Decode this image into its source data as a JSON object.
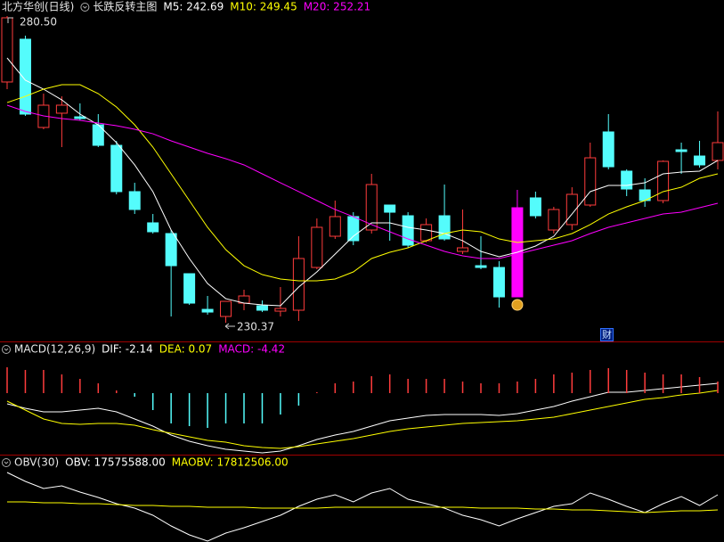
{
  "chart_data": [
    {
      "type": "candlestick",
      "title": "北方华创(日线)",
      "subtitle": "长跌反转主图",
      "ylim": [
        227.32,
        283.12
      ],
      "up_color": "#ff3c3c",
      "down_color": "#54fcfc",
      "signal_color": "#ff00ff",
      "open": [
        269.72,
        276.71,
        262.29,
        264.62,
        264.03,
        262.72,
        259.37,
        251.8,
        246.7,
        244.95,
        238.39,
        232.56,
        231.4,
        233.58,
        233.15,
        232.27,
        232.42,
        239.41,
        244.51,
        247.72,
        245.53,
        249.61,
        247.86,
        243.78,
        247.86,
        242.03,
        239.7,
        239.41,
        249.17,
        250.78,
        245.53,
        246.41,
        249.61,
        261.56,
        255.15,
        252.09,
        250.34,
        258.64,
        257.62,
        256.9
      ],
      "high": [
        280.5,
        277.29,
        267.82,
        267.38,
        266.22,
        264.47,
        260.1,
        253.25,
        248.15,
        245.53,
        238.39,
        234.75,
        233.87,
        235.77,
        234.02,
        236.21,
        244.51,
        247.42,
        250.34,
        248.44,
        254.71,
        249.61,
        248.44,
        247.42,
        252.96,
        248.88,
        244.51,
        240.43,
        252.09,
        251.8,
        249.32,
        252.52,
        259.81,
        264.47,
        255.44,
        253.98,
        256.9,
        259.81,
        260.1,
        264.91
      ],
      "low": [
        268.55,
        264.18,
        262.0,
        259.08,
        263.45,
        259.08,
        251.36,
        248.15,
        244.95,
        231.4,
        233.29,
        231.69,
        230.37,
        232.42,
        232.12,
        231.4,
        230.67,
        239.12,
        244.07,
        243.05,
        244.95,
        243.78,
        242.62,
        243.49,
        243.78,
        241.6,
        239.12,
        232.85,
        234.6,
        247.42,
        244.95,
        245.53,
        249.32,
        255.44,
        251.07,
        249.32,
        249.9,
        254.71,
        255.73,
        255.44
      ],
      "close": [
        280.21,
        264.47,
        265.93,
        265.93,
        263.74,
        259.37,
        251.8,
        248.88,
        245.24,
        239.7,
        233.58,
        232.12,
        233.87,
        234.75,
        232.42,
        232.71,
        240.87,
        245.97,
        247.72,
        243.78,
        252.96,
        248.44,
        243.05,
        246.41,
        244.07,
        242.62,
        239.41,
        234.6,
        234.6,
        247.86,
        248.88,
        251.36,
        257.33,
        255.87,
        252.23,
        250.34,
        256.75,
        258.35,
        256.17,
        259.81
      ],
      "signal": [
        false,
        false,
        false,
        false,
        false,
        false,
        false,
        false,
        false,
        false,
        false,
        false,
        false,
        false,
        false,
        false,
        false,
        false,
        false,
        false,
        false,
        false,
        false,
        false,
        false,
        false,
        false,
        false,
        true,
        false,
        false,
        false,
        false,
        false,
        false,
        false,
        false,
        false,
        false,
        false
      ],
      "series": [
        {
          "name": "M5: 242.69",
          "color": "#ffffff",
          "kind": "line",
          "values": [
            273.65,
            270.01,
            268.55,
            266.8,
            264.47,
            262.72,
            259.81,
            256.17,
            251.8,
            245.53,
            240.87,
            236.79,
            234.31,
            233.58,
            233.29,
            233.15,
            236.21,
            238.68,
            241.6,
            244.51,
            246.7,
            246.7,
            245.97,
            245.53,
            244.95,
            243.78,
            242.03,
            241.16,
            241.89,
            242.91,
            244.51,
            248.15,
            251.8,
            252.81,
            252.81,
            253.25,
            254.71,
            255.0,
            255.15,
            256.9
          ]
        },
        {
          "name": "M10: 249.45",
          "color": "#ffff00",
          "kind": "line",
          "values": [
            266.36,
            267.38,
            268.55,
            269.28,
            269.28,
            267.82,
            265.64,
            262.72,
            259.08,
            254.71,
            250.34,
            245.97,
            242.32,
            239.7,
            238.24,
            237.52,
            237.22,
            237.22,
            237.52,
            238.68,
            240.87,
            241.89,
            242.62,
            243.78,
            244.95,
            245.53,
            245.24,
            244.07,
            243.49,
            243.78,
            244.07,
            244.95,
            246.41,
            248.15,
            249.32,
            250.34,
            251.8,
            252.52,
            253.98,
            254.71
          ]
        },
        {
          "name": "M20: 252.21",
          "color": "#ff00ff",
          "kind": "line",
          "values": [
            265.93,
            264.91,
            264.18,
            263.74,
            263.45,
            263.01,
            262.58,
            262.0,
            261.26,
            260.1,
            259.08,
            258.06,
            257.19,
            256.17,
            254.71,
            253.25,
            251.8,
            250.34,
            248.88,
            247.71,
            246.41,
            245.24,
            244.07,
            243.05,
            242.03,
            241.3,
            240.87,
            240.87,
            241.6,
            242.32,
            243.05,
            243.78,
            244.95,
            245.97,
            246.7,
            247.42,
            248.15,
            248.44,
            249.17,
            249.9
          ]
        }
      ],
      "annotations": [
        "280.50",
        "230.37"
      ],
      "marker_text": "财"
    },
    {
      "type": "indicator",
      "title": "MACD(12,26,9)",
      "ylim": [
        -34.5,
        28
      ],
      "series": [
        {
          "name": "DIF: -2.14",
          "color": "#ffffff",
          "kind": "line",
          "values": [
            -6,
            -8.5,
            -10.5,
            -10.5,
            -9.5,
            -8.5,
            -10.5,
            -14.5,
            -18.5,
            -23.5,
            -27,
            -29.5,
            -31.5,
            -32.5,
            -33.5,
            -32.5,
            -29.5,
            -26,
            -23.5,
            -21.5,
            -18.5,
            -15.5,
            -14,
            -12.5,
            -12,
            -12,
            -12,
            -12.5,
            -11.5,
            -9.5,
            -7.5,
            -4.5,
            -2,
            0.5,
            0.5,
            1.5,
            2.5,
            3.5,
            4.5,
            5.5
          ]
        },
        {
          "name": "DEA: 0.07",
          "color": "#ffff00",
          "kind": "line",
          "values": [
            -4.5,
            -9.5,
            -14.5,
            -17,
            -17.5,
            -17,
            -17,
            -18,
            -20.5,
            -22.5,
            -24.5,
            -26.5,
            -27.5,
            -29.5,
            -30.5,
            -31,
            -30,
            -28.5,
            -27,
            -25.5,
            -23.5,
            -21.5,
            -20,
            -19,
            -18,
            -17,
            -16.5,
            -16,
            -15.5,
            -14.5,
            -13.5,
            -11.5,
            -9.5,
            -7.5,
            -5.5,
            -3.5,
            -2.5,
            -1,
            0,
            1.5
          ]
        },
        {
          "name": "MACD: -4.42",
          "color": "#ff00ff",
          "kind": "bar",
          "up_color": "#ff3c3c",
          "down_color": "#54fcfc",
          "values": [
            14.5,
            13,
            13,
            10.5,
            8,
            5.5,
            1.5,
            -2,
            -9.5,
            -17,
            -18.5,
            -19.5,
            -17,
            -17,
            -17,
            -12,
            -7,
            0.5,
            5.5,
            6.5,
            9.5,
            10.5,
            8,
            8,
            8,
            6.5,
            5.5,
            5.5,
            6.5,
            8,
            10.5,
            11.5,
            13,
            14,
            13,
            11.5,
            10.5,
            10.5,
            9,
            6.5
          ]
        }
      ]
    },
    {
      "type": "indicator",
      "title": "OBV(30)",
      "ylim": [
        7580000,
        26780000
      ],
      "series": [
        {
          "name": "OBV: 17575588.00",
          "color": "#ffffff",
          "kind": "line",
          "values": [
            23180000,
            21180000,
            19580000,
            20180000,
            18780000,
            17580000,
            16180000,
            15180000,
            13580000,
            11180000,
            9180000,
            7780000,
            9580000,
            10780000,
            12180000,
            13580000,
            15580000,
            17180000,
            18180000,
            16580000,
            18580000,
            19580000,
            17180000,
            16180000,
            15180000,
            13580000,
            12580000,
            11180000,
            12780000,
            14180000,
            15580000,
            16180000,
            18580000,
            17180000,
            15580000,
            14180000,
            16180000,
            17780000,
            15780000,
            18180000
          ]
        },
        {
          "name": "MAOBV: 17812506.00",
          "color": "#ffff00",
          "kind": "line",
          "values": [
            16580000,
            16580000,
            16380000,
            16380000,
            16180000,
            16180000,
            15980000,
            15780000,
            15780000,
            15580000,
            15580000,
            15380000,
            15380000,
            15380000,
            15180000,
            15180000,
            15180000,
            15180000,
            15380000,
            15380000,
            15380000,
            15380000,
            15380000,
            15380000,
            15380000,
            15380000,
            15180000,
            15180000,
            15180000,
            14980000,
            14980000,
            14780000,
            14780000,
            14580000,
            14380000,
            14180000,
            14380000,
            14580000,
            14580000,
            14780000
          ]
        }
      ]
    }
  ]
}
